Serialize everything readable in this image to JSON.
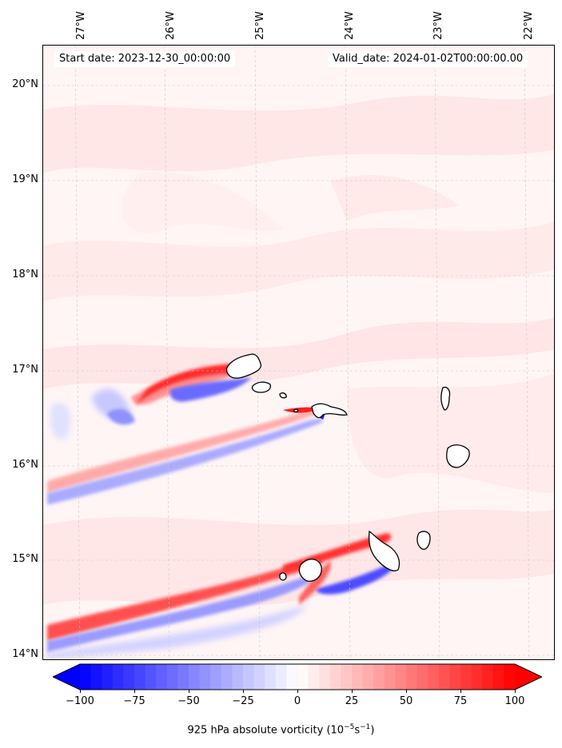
{
  "header": {
    "start_date": "Start date: 2023-12-30_00:00:00",
    "valid_date": "Valid_date: 2024-01-02T00:00:00.00"
  },
  "axes": {
    "lon_labels": [
      "27°W",
      "26°W",
      "25°W",
      "24°W",
      "23°W",
      "22°W"
    ],
    "lat_labels": [
      "20°N",
      "19°N",
      "18°N",
      "17°N",
      "16°N",
      "15°N",
      "14°N"
    ],
    "gridlines": true
  },
  "colorbar": {
    "ticks": [
      "−100",
      "−75",
      "−50",
      "−25",
      "0",
      "25",
      "50",
      "75",
      "100"
    ],
    "label": "925 hPa absolute vorticity (10",
    "label_exp": "−5",
    "label_unit": "s",
    "label_exp2": "−1",
    "label_end": ")",
    "min": -100,
    "max": 100,
    "colors": {
      "negative": "#0000ff",
      "neutral": "#ffffff",
      "positive": "#ff0000"
    }
  }
}
